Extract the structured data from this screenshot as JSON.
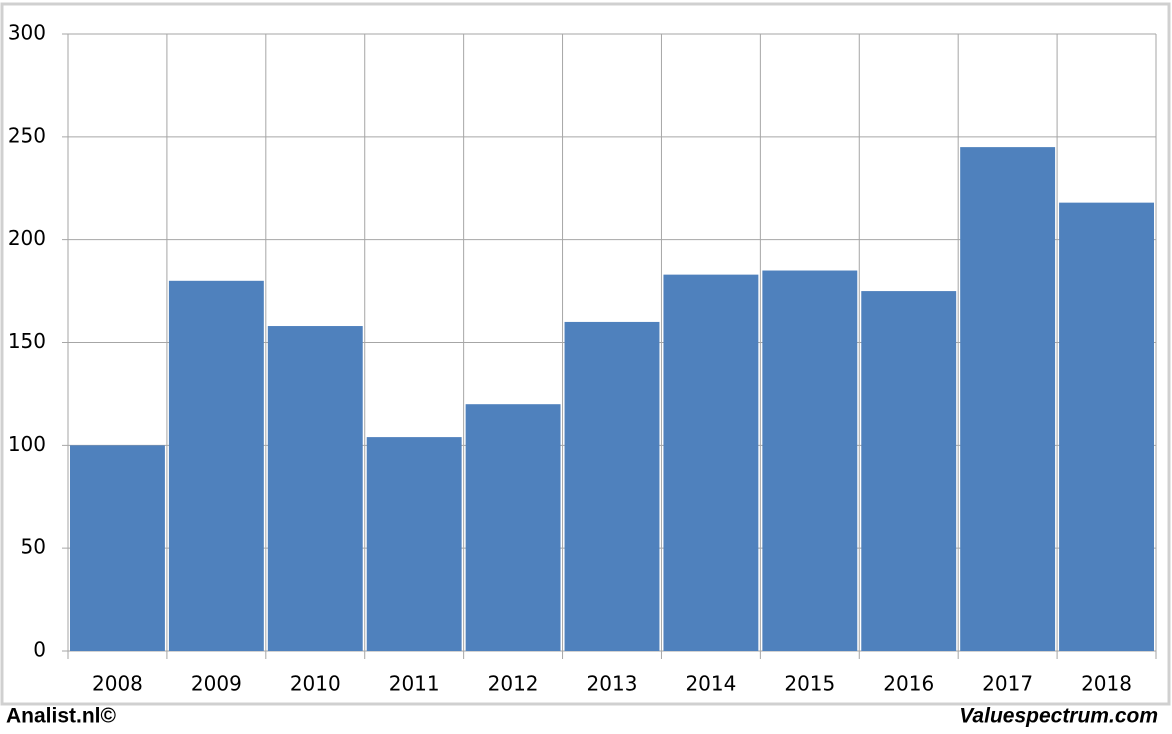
{
  "chart_data": {
    "type": "bar",
    "categories": [
      "2008",
      "2009",
      "2010",
      "2011",
      "2012",
      "2013",
      "2014",
      "2015",
      "2016",
      "2017",
      "2018"
    ],
    "values": [
      100,
      180,
      158,
      104,
      120,
      160,
      183,
      185,
      175,
      245,
      218
    ],
    "color": "#4f81bd",
    "ylim": [
      0,
      300
    ],
    "yticks": [
      0,
      50,
      100,
      150,
      200,
      250,
      300
    ],
    "grid": true,
    "footer_left": "Analist.nl©",
    "footer_right": "Valuespectrum.com"
  }
}
